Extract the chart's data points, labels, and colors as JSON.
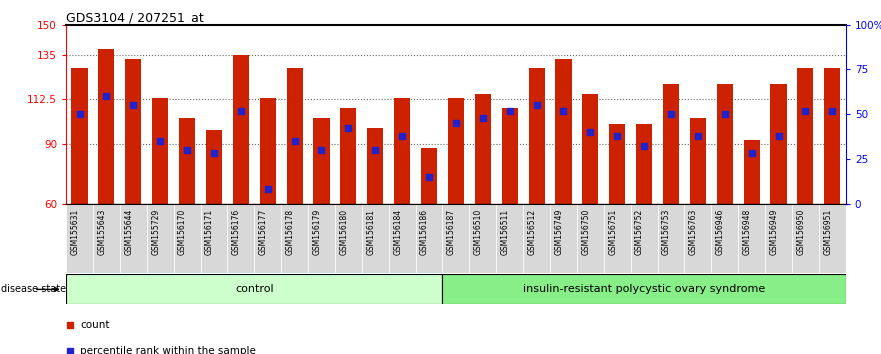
{
  "title": "GDS3104 / 207251_at",
  "samples": [
    "GSM155631",
    "GSM155643",
    "GSM155644",
    "GSM155729",
    "GSM156170",
    "GSM156171",
    "GSM156176",
    "GSM156177",
    "GSM156178",
    "GSM156179",
    "GSM156180",
    "GSM156181",
    "GSM156184",
    "GSM156186",
    "GSM156187",
    "GSM156510",
    "GSM156511",
    "GSM156512",
    "GSM156749",
    "GSM156750",
    "GSM156751",
    "GSM156752",
    "GSM156753",
    "GSM156763",
    "GSM156946",
    "GSM156948",
    "GSM156949",
    "GSM156950",
    "GSM156951"
  ],
  "bar_values": [
    128,
    138,
    133,
    113,
    103,
    97,
    135,
    113,
    128,
    103,
    108,
    98,
    113,
    88,
    113,
    115,
    108,
    128,
    133,
    115,
    100,
    100,
    120,
    103,
    120,
    92,
    120,
    128,
    128
  ],
  "percentile_values": [
    50,
    60,
    55,
    35,
    30,
    28,
    52,
    8,
    35,
    30,
    42,
    30,
    38,
    15,
    45,
    48,
    52,
    55,
    52,
    40,
    38,
    32,
    50,
    38,
    50,
    28,
    38,
    52,
    52
  ],
  "control_count": 14,
  "disease_count": 15,
  "ylim_left": [
    60,
    150
  ],
  "ylim_right": [
    0,
    100
  ],
  "yticks_left": [
    60,
    90,
    112.5,
    135,
    150
  ],
  "ytick_labels_left": [
    "60",
    "90",
    "112.5",
    "135",
    "150"
  ],
  "yticks_right": [
    0,
    25,
    50,
    75,
    100
  ],
  "ytick_labels_right": [
    "0",
    "25",
    "50",
    "75",
    "100%"
  ],
  "bar_color": "#cc2200",
  "dot_color": "#2222cc",
  "control_bg": "#ccffcc",
  "disease_bg": "#88ee88",
  "group_label_control": "control",
  "group_label_disease": "insulin-resistant polycystic ovary syndrome",
  "disease_state_label": "disease state",
  "legend_count": "count",
  "legend_percentile": "percentile rank within the sample",
  "hlines": [
    90,
    112.5,
    135
  ],
  "grid_color": "#666666",
  "background_color": "#ffffff"
}
